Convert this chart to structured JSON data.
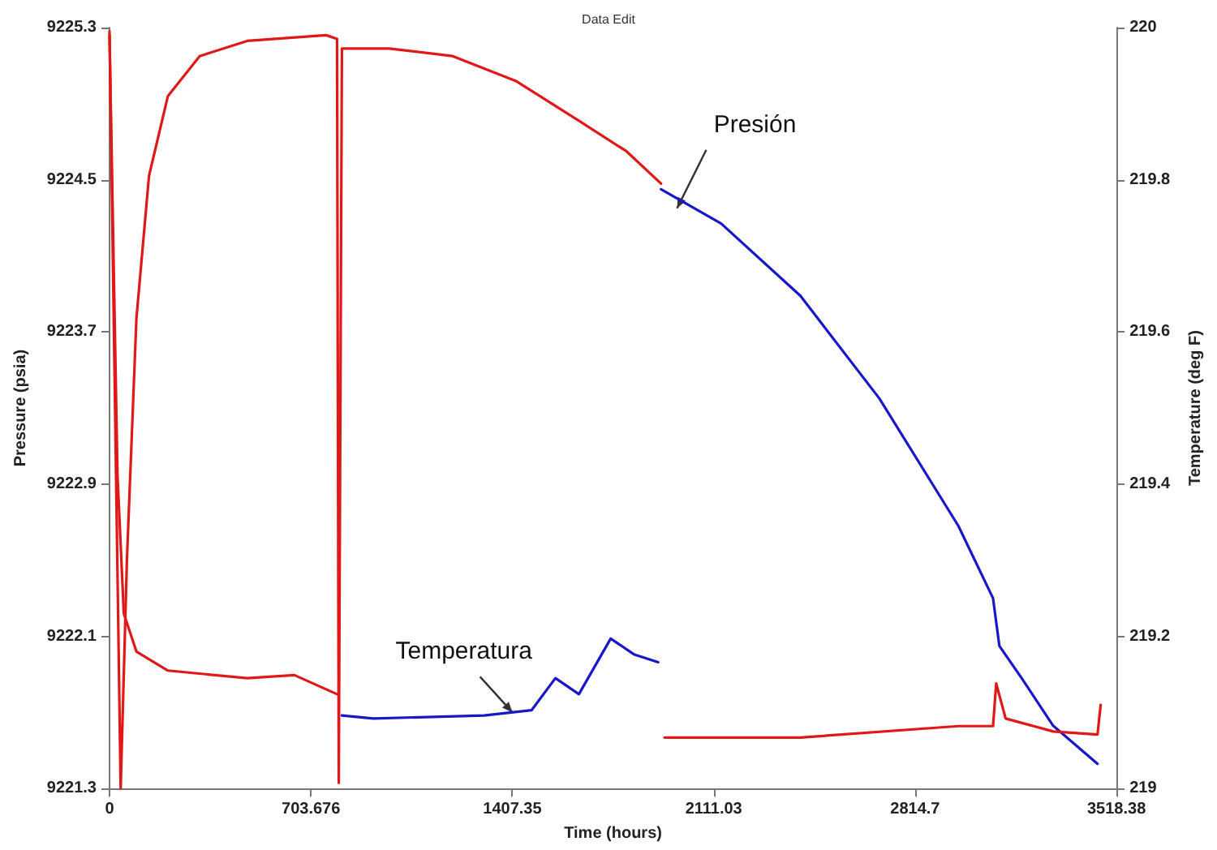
{
  "chart_data": {
    "type": "line",
    "title": "Data Edit",
    "xlabel": "Time (hours)",
    "ylabel": "Pressure (psia)",
    "y2label": "Temperature (deg F)",
    "xlim": [
      0,
      3518.38
    ],
    "xticks": [
      0,
      703.676,
      1407.35,
      2111.03,
      2814.7,
      3518.38
    ],
    "ylim": [
      9221.3,
      9225.3
    ],
    "yticks": [
      9221.3,
      9222.1,
      9222.9,
      9223.7,
      9224.5,
      9225.3
    ],
    "y2lim": [
      219,
      220
    ],
    "y2ticks": [
      219,
      219.2,
      219.4,
      219.6,
      219.8,
      220
    ],
    "grid": false,
    "marker": "none",
    "line_style": "solid",
    "series": [
      {
        "color": "#e01818",
        "x": [
          0,
          39,
          61,
          94,
          138,
          204,
          315,
          481,
          757,
          795,
          801,
          812,
          978,
          1199,
          1419,
          1640,
          1806,
          1927
        ],
        "values": [
          9225.28,
          9221.3,
          9222.51,
          9223.77,
          9224.52,
          9224.94,
          9225.15,
          9225.23,
          9225.26,
          9225.24,
          9221.33,
          9225.19,
          9225.19,
          9225.15,
          9225.02,
          9224.81,
          9224.65,
          9224.48
        ]
      },
      {
        "color": "#1818c8",
        "x": [
          1927,
          2137,
          2414,
          2690,
          2966,
          3087,
          3109,
          3187,
          3297,
          3452
        ],
        "values": [
          9224.45,
          9224.27,
          9223.89,
          9223.35,
          9222.68,
          9222.3,
          9222.05,
          9221.88,
          9221.63,
          9221.43
        ]
      },
      {
        "color": "#e01818",
        "axis": "y2",
        "x": [
          0,
          28,
          50,
          94,
          204,
          481,
          646,
          795
        ],
        "values": [
          219.99,
          219.41,
          219.23,
          219.18,
          219.155,
          219.145,
          219.149,
          219.124
        ]
      },
      {
        "color": "#1818c8",
        "axis": "y2",
        "x": [
          812,
          922,
          1309,
          1475,
          1558,
          1640,
          1751,
          1834,
          1917
        ],
        "values": [
          219.096,
          219.092,
          219.096,
          219.103,
          219.145,
          219.124,
          219.197,
          219.176,
          219.166
        ]
      },
      {
        "color": "#e01818",
        "axis": "y2",
        "x": [
          1939,
          2414,
          2966,
          3087,
          3098,
          3131,
          3297,
          3452,
          3463
        ],
        "values": [
          219.067,
          219.067,
          219.082,
          219.082,
          219.138,
          219.092,
          219.075,
          219.071,
          219.11
        ]
      }
    ],
    "annotations": [
      {
        "text": "Presión",
        "x": 1983,
        "y": 9224.35
      },
      {
        "text": "Temperatura",
        "x": 1408,
        "y": 9221.7
      }
    ]
  }
}
